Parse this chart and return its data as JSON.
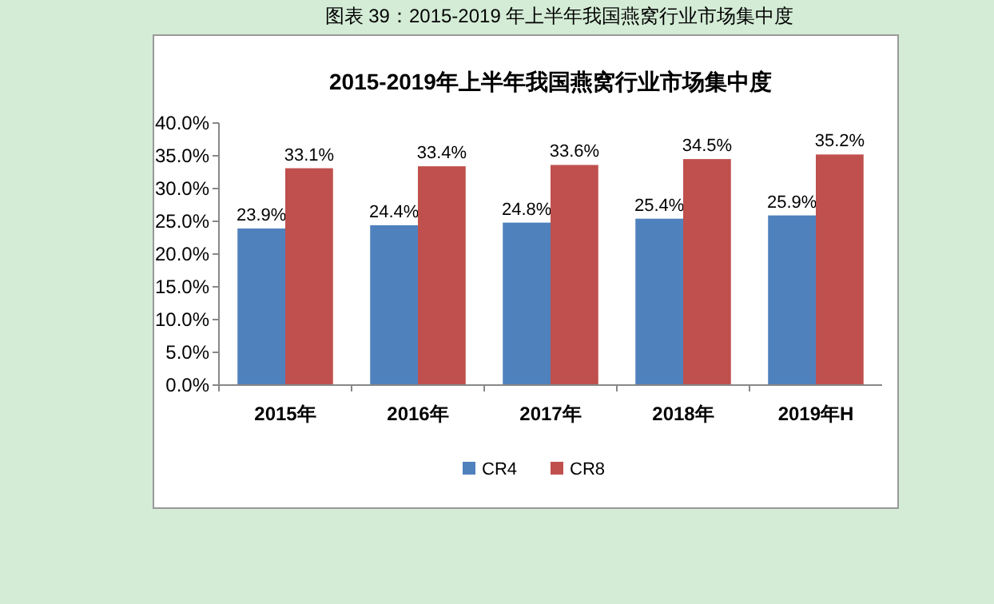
{
  "chart_data": {
    "type": "bar",
    "title": "2015-2019年上半年我国燕窝行业市场集中度",
    "annotations": [
      "图表 39：2015-2019 年上半年我国燕窝行业市场集中度"
    ],
    "categories": [
      "2015年",
      "2016年",
      "2017年",
      "2018年",
      "2019年H"
    ],
    "series": [
      {
        "name": "CR4",
        "color": "#4f81bd",
        "values": [
          23.9,
          24.4,
          24.8,
          25.4,
          25.9
        ],
        "value_labels": [
          "23.9%",
          "24.4%",
          "24.8%",
          "25.4%",
          "25.9%"
        ]
      },
      {
        "name": "CR8",
        "color": "#c0504d",
        "values": [
          33.1,
          33.4,
          33.6,
          34.5,
          35.2
        ],
        "value_labels": [
          "33.1%",
          "33.4%",
          "33.6%",
          "34.5%",
          "35.2%"
        ]
      }
    ],
    "ylim": [
      0,
      40
    ],
    "yticks": [
      {
        "value": 0,
        "label": "0.0%"
      },
      {
        "value": 5,
        "label": "5.0%"
      },
      {
        "value": 10,
        "label": "10.0%"
      },
      {
        "value": 15,
        "label": "15.0%"
      },
      {
        "value": 20,
        "label": "20.0%"
      },
      {
        "value": 25,
        "label": "25.0%"
      },
      {
        "value": 30,
        "label": "30.0%"
      },
      {
        "value": 35,
        "label": "35.0%"
      },
      {
        "value": 40,
        "label": "40.0%"
      }
    ],
    "grid": false,
    "legend": "bottom"
  }
}
